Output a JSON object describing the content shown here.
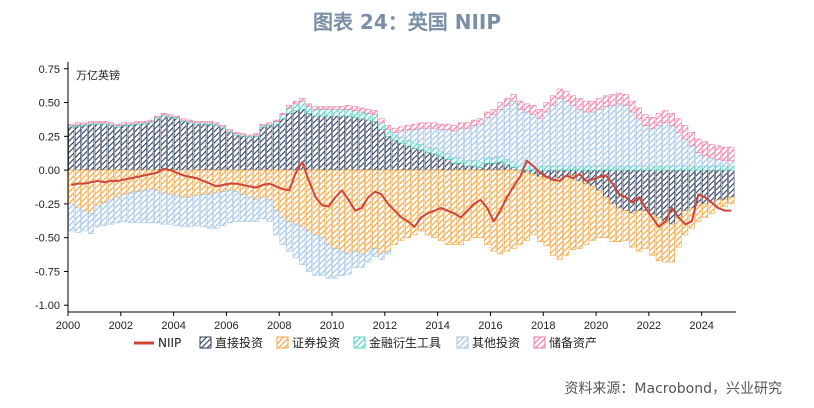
{
  "title": "图表 24：英国 NIIP",
  "source": "资料来源：Macrobond，兴业研究",
  "chart_data": {
    "type": "bar",
    "stacked": true,
    "unit_label": "万亿英镑",
    "ylim": [
      -1.05,
      0.8
    ],
    "yticks": [
      -1.0,
      -0.75,
      -0.5,
      -0.25,
      0.0,
      0.25,
      0.5,
      0.75
    ],
    "ytick_labels": [
      "-1.00",
      "-0.75",
      "-0.50",
      "-0.25",
      "0.00",
      "0.25",
      "0.50",
      "0.75"
    ],
    "xlim": [
      2000,
      2025.3
    ],
    "xticks": [
      2000,
      2002,
      2004,
      2006,
      2008,
      2010,
      2012,
      2014,
      2016,
      2018,
      2020,
      2022,
      2024
    ],
    "xtick_labels": [
      "2000",
      "2002",
      "2004",
      "2006",
      "2008",
      "2010",
      "2012",
      "2014",
      "2016",
      "2018",
      "2020",
      "2022",
      "2024"
    ],
    "legend_position": "bottom",
    "periods_start": 2000.0,
    "period_step": 0.25,
    "series": [
      {
        "name": "直接投资",
        "color": "#2e3d5c",
        "pattern": "hatch",
        "kind": "bar",
        "values": [
          0.32,
          0.33,
          0.33,
          0.34,
          0.34,
          0.34,
          0.33,
          0.32,
          0.33,
          0.33,
          0.34,
          0.34,
          0.35,
          0.38,
          0.4,
          0.39,
          0.38,
          0.36,
          0.35,
          0.34,
          0.34,
          0.34,
          0.33,
          0.31,
          0.28,
          0.26,
          0.25,
          0.24,
          0.25,
          0.32,
          0.33,
          0.34,
          0.38,
          0.42,
          0.44,
          0.45,
          0.42,
          0.4,
          0.4,
          0.4,
          0.4,
          0.4,
          0.4,
          0.39,
          0.38,
          0.37,
          0.36,
          0.3,
          0.25,
          0.22,
          0.2,
          0.18,
          0.16,
          0.15,
          0.13,
          0.12,
          0.1,
          0.08,
          0.05,
          0.05,
          0.03,
          0.03,
          0.02,
          0.05,
          0.05,
          0.06,
          0.04,
          0.02,
          0.0,
          -0.02,
          -0.03,
          -0.05,
          -0.06,
          -0.08,
          -0.06,
          -0.05,
          -0.04,
          -0.08,
          -0.1,
          -0.12,
          -0.15,
          -0.2,
          -0.25,
          -0.28,
          -0.3,
          -0.32,
          -0.3,
          -0.3,
          -0.33,
          -0.35,
          -0.38,
          -0.4,
          -0.35,
          -0.3,
          -0.28,
          -0.26,
          -0.25,
          -0.24,
          -0.22,
          -0.22,
          -0.2
        ]
      },
      {
        "name": "证券投资",
        "color": "#f2a33a",
        "pattern": "hatch",
        "kind": "bar",
        "values": [
          -0.25,
          -0.28,
          -0.3,
          -0.32,
          -0.26,
          -0.24,
          -0.22,
          -0.2,
          -0.18,
          -0.17,
          -0.16,
          -0.15,
          -0.14,
          -0.15,
          -0.17,
          -0.18,
          -0.19,
          -0.2,
          -0.2,
          -0.19,
          -0.18,
          -0.18,
          -0.17,
          -0.16,
          -0.15,
          -0.16,
          -0.18,
          -0.2,
          -0.22,
          -0.2,
          -0.22,
          -0.3,
          -0.35,
          -0.38,
          -0.4,
          -0.42,
          -0.45,
          -0.48,
          -0.5,
          -0.55,
          -0.58,
          -0.6,
          -0.62,
          -0.6,
          -0.62,
          -0.6,
          -0.58,
          -0.62,
          -0.6,
          -0.55,
          -0.52,
          -0.5,
          -0.48,
          -0.45,
          -0.48,
          -0.5,
          -0.52,
          -0.55,
          -0.55,
          -0.55,
          -0.52,
          -0.5,
          -0.5,
          -0.55,
          -0.6,
          -0.62,
          -0.6,
          -0.58,
          -0.55,
          -0.5,
          -0.45,
          -0.48,
          -0.5,
          -0.55,
          -0.6,
          -0.58,
          -0.55,
          -0.5,
          -0.45,
          -0.4,
          -0.35,
          -0.3,
          -0.28,
          -0.25,
          -0.22,
          -0.25,
          -0.3,
          -0.28,
          -0.3,
          -0.32,
          -0.3,
          -0.28,
          -0.22,
          -0.18,
          -0.15,
          -0.12,
          -0.1,
          -0.08,
          -0.06,
          -0.05,
          -0.05
        ]
      },
      {
        "name": "金融衍生工具",
        "color": "#4fd1c5",
        "pattern": "hatch",
        "kind": "bar",
        "values": [
          0.01,
          0.01,
          0.01,
          0.01,
          0.01,
          0.01,
          0.01,
          0.01,
          0.01,
          0.01,
          0.01,
          0.01,
          0.01,
          0.01,
          0.01,
          0.01,
          0.01,
          0.01,
          0.01,
          0.01,
          0.01,
          0.01,
          0.01,
          0.01,
          0.01,
          0.01,
          0.01,
          0.01,
          0.01,
          0.01,
          0.01,
          0.02,
          0.03,
          0.04,
          0.05,
          0.06,
          0.05,
          0.05,
          0.05,
          0.05,
          0.05,
          0.05,
          0.05,
          0.05,
          0.05,
          0.05,
          0.05,
          0.05,
          0.05,
          0.04,
          0.04,
          0.04,
          0.04,
          0.04,
          0.04,
          0.04,
          0.04,
          0.04,
          0.04,
          0.04,
          0.04,
          0.04,
          0.04,
          0.04,
          0.04,
          0.04,
          0.04,
          0.04,
          0.03,
          0.03,
          0.03,
          0.03,
          0.03,
          0.03,
          0.03,
          0.03,
          0.03,
          0.03,
          0.03,
          0.03,
          0.03,
          0.03,
          0.03,
          0.03,
          0.03,
          0.03,
          0.03,
          0.03,
          0.03,
          0.03,
          0.03,
          0.03,
          0.03,
          0.03,
          0.03,
          0.03,
          0.03,
          0.03,
          0.03,
          0.03,
          0.03
        ]
      },
      {
        "name": "其他投资",
        "color": "#9cc1e6",
        "pattern": "hatch",
        "kind": "bar",
        "values": [
          -0.2,
          -0.18,
          -0.15,
          -0.15,
          -0.16,
          -0.17,
          -0.18,
          -0.19,
          -0.2,
          -0.22,
          -0.23,
          -0.24,
          -0.25,
          -0.24,
          -0.23,
          -0.22,
          -0.22,
          -0.22,
          -0.22,
          -0.22,
          -0.24,
          -0.25,
          -0.26,
          -0.25,
          -0.24,
          -0.22,
          -0.2,
          -0.18,
          -0.16,
          -0.16,
          -0.16,
          -0.18,
          -0.2,
          -0.22,
          -0.25,
          -0.28,
          -0.3,
          -0.3,
          -0.28,
          -0.25,
          -0.22,
          -0.18,
          -0.15,
          -0.12,
          -0.1,
          -0.08,
          -0.06,
          -0.04,
          -0.02,
          0.02,
          0.05,
          0.08,
          0.1,
          0.12,
          0.14,
          0.15,
          0.16,
          0.18,
          0.2,
          0.22,
          0.24,
          0.26,
          0.28,
          0.3,
          0.32,
          0.35,
          0.4,
          0.45,
          0.42,
          0.4,
          0.38,
          0.35,
          0.4,
          0.45,
          0.5,
          0.48,
          0.45,
          0.42,
          0.4,
          0.4,
          0.42,
          0.44,
          0.45,
          0.46,
          0.45,
          0.4,
          0.35,
          0.3,
          0.28,
          0.3,
          0.32,
          0.3,
          0.25,
          0.2,
          0.15,
          0.1,
          0.08,
          0.06,
          0.05,
          0.04,
          0.04
        ]
      },
      {
        "name": "储备资产",
        "color": "#f07aa0",
        "pattern": "hatch",
        "kind": "bar",
        "values": [
          0.01,
          0.01,
          0.01,
          0.01,
          0.01,
          0.01,
          0.01,
          0.01,
          0.01,
          0.01,
          0.01,
          0.01,
          0.01,
          0.01,
          0.01,
          0.01,
          0.01,
          0.01,
          0.01,
          0.01,
          0.01,
          0.01,
          0.01,
          0.01,
          0.01,
          0.01,
          0.01,
          0.01,
          0.01,
          0.01,
          0.01,
          0.01,
          0.01,
          0.02,
          0.02,
          0.02,
          0.02,
          0.02,
          0.02,
          0.02,
          0.02,
          0.02,
          0.03,
          0.03,
          0.03,
          0.03,
          0.03,
          0.03,
          0.03,
          0.03,
          0.03,
          0.03,
          0.04,
          0.04,
          0.04,
          0.04,
          0.04,
          0.04,
          0.04,
          0.04,
          0.04,
          0.04,
          0.04,
          0.04,
          0.04,
          0.05,
          0.05,
          0.05,
          0.06,
          0.06,
          0.07,
          0.07,
          0.07,
          0.07,
          0.07,
          0.07,
          0.07,
          0.08,
          0.08,
          0.08,
          0.08,
          0.08,
          0.08,
          0.08,
          0.08,
          0.08,
          0.08,
          0.08,
          0.08,
          0.09,
          0.09,
          0.09,
          0.1,
          0.1,
          0.1,
          0.1,
          0.1,
          0.1,
          0.1,
          0.1,
          0.1
        ]
      },
      {
        "name": "NIIP",
        "color": "#d0453a",
        "kind": "line",
        "values": [
          -0.11,
          -0.1,
          -0.1,
          -0.09,
          -0.08,
          -0.09,
          -0.08,
          -0.08,
          -0.07,
          -0.06,
          -0.05,
          -0.04,
          -0.03,
          -0.02,
          0.01,
          0.0,
          -0.02,
          -0.04,
          -0.05,
          -0.06,
          -0.08,
          -0.1,
          -0.12,
          -0.11,
          -0.1,
          -0.1,
          -0.11,
          -0.12,
          -0.13,
          -0.11,
          -0.1,
          -0.12,
          -0.14,
          -0.15,
          -0.02,
          0.06,
          -0.08,
          -0.2,
          -0.26,
          -0.27,
          -0.2,
          -0.15,
          -0.22,
          -0.3,
          -0.28,
          -0.2,
          -0.16,
          -0.18,
          -0.25,
          -0.3,
          -0.35,
          -0.38,
          -0.42,
          -0.35,
          -0.32,
          -0.3,
          -0.28,
          -0.3,
          -0.32,
          -0.35,
          -0.3,
          -0.25,
          -0.22,
          -0.28,
          -0.38,
          -0.3,
          -0.2,
          -0.12,
          -0.05,
          0.07,
          0.03,
          -0.02,
          -0.05,
          -0.07,
          -0.08,
          -0.04,
          -0.06,
          -0.03,
          -0.08,
          -0.07,
          -0.05,
          -0.04,
          -0.1,
          -0.18,
          -0.2,
          -0.24,
          -0.2,
          -0.28,
          -0.35,
          -0.42,
          -0.38,
          -0.28,
          -0.35,
          -0.4,
          -0.38,
          -0.18,
          -0.2,
          -0.24,
          -0.28,
          -0.3,
          -0.3
        ]
      }
    ]
  }
}
